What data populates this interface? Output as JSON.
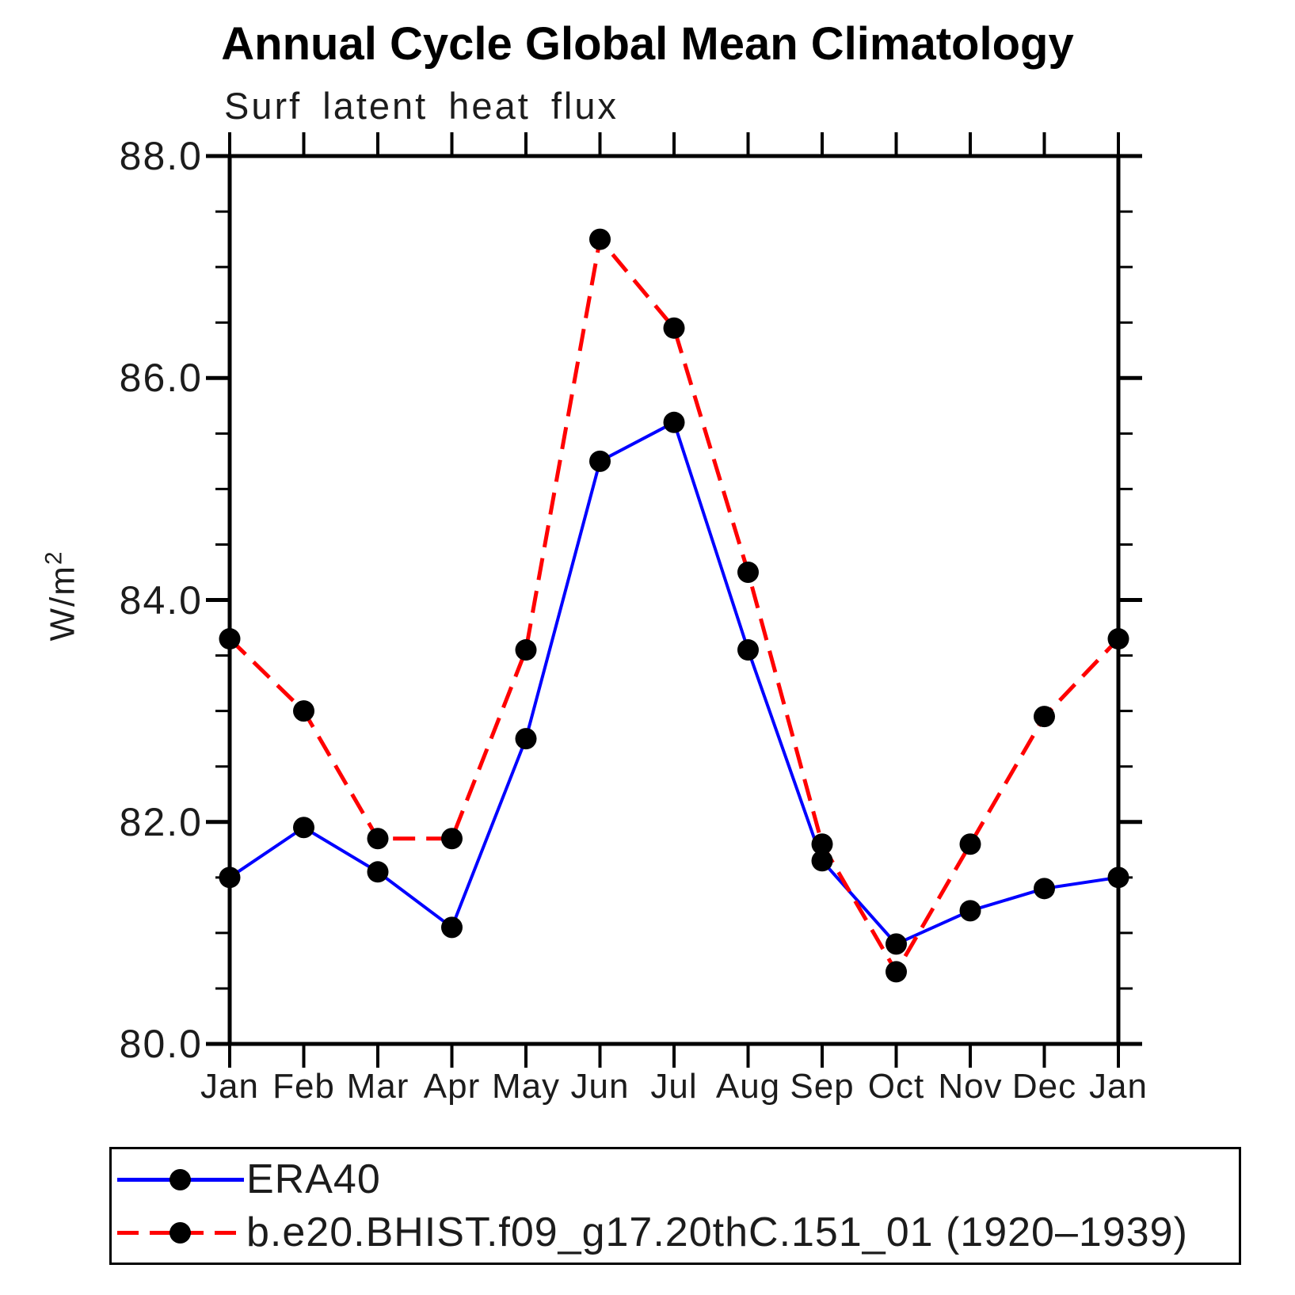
{
  "title": "Annual Cycle Global Mean Climatology",
  "subtitle": "Surf latent heat flux",
  "ylabel_base": "W/m",
  "ylabel_exp": "2",
  "colors": {
    "era40_line": "#0000ff",
    "model_line": "#ff0000",
    "marker": "#000000",
    "axis": "#000000",
    "background": "#ffffff"
  },
  "chart_data": {
    "type": "line",
    "title": "Annual Cycle Global Mean Climatology",
    "subtitle": "Surf latent heat flux",
    "xlabel": "",
    "ylabel": "W/m^2",
    "ylim": [
      80.0,
      88.0
    ],
    "ytick_major": [
      80.0,
      82.0,
      84.0,
      86.0,
      88.0
    ],
    "ytick_labels": [
      "80.0",
      "82.0",
      "84.0",
      "86.0",
      "88.0"
    ],
    "ytick_minor_step": 0.5,
    "grid": false,
    "legend_position": "bottom-left-box",
    "categories": [
      "Jan",
      "Feb",
      "Mar",
      "Apr",
      "May",
      "Jun",
      "Jul",
      "Aug",
      "Sep",
      "Oct",
      "Nov",
      "Dec",
      "Jan"
    ],
    "series": [
      {
        "name": "ERA40",
        "color": "#0000ff",
        "style": "solid",
        "marker": "circle",
        "values": [
          81.5,
          81.95,
          81.55,
          81.05,
          82.75,
          85.25,
          85.6,
          83.55,
          81.65,
          80.9,
          81.2,
          81.4,
          81.5
        ]
      },
      {
        "name": "b.e20.BHIST.f09_g17.20thC.151_01 (1920–1939)",
        "color": "#ff0000",
        "style": "dashed",
        "marker": "circle",
        "values": [
          83.65,
          83.0,
          81.85,
          81.85,
          83.55,
          87.25,
          86.45,
          84.25,
          81.8,
          80.65,
          81.8,
          82.95,
          83.65
        ]
      }
    ]
  }
}
